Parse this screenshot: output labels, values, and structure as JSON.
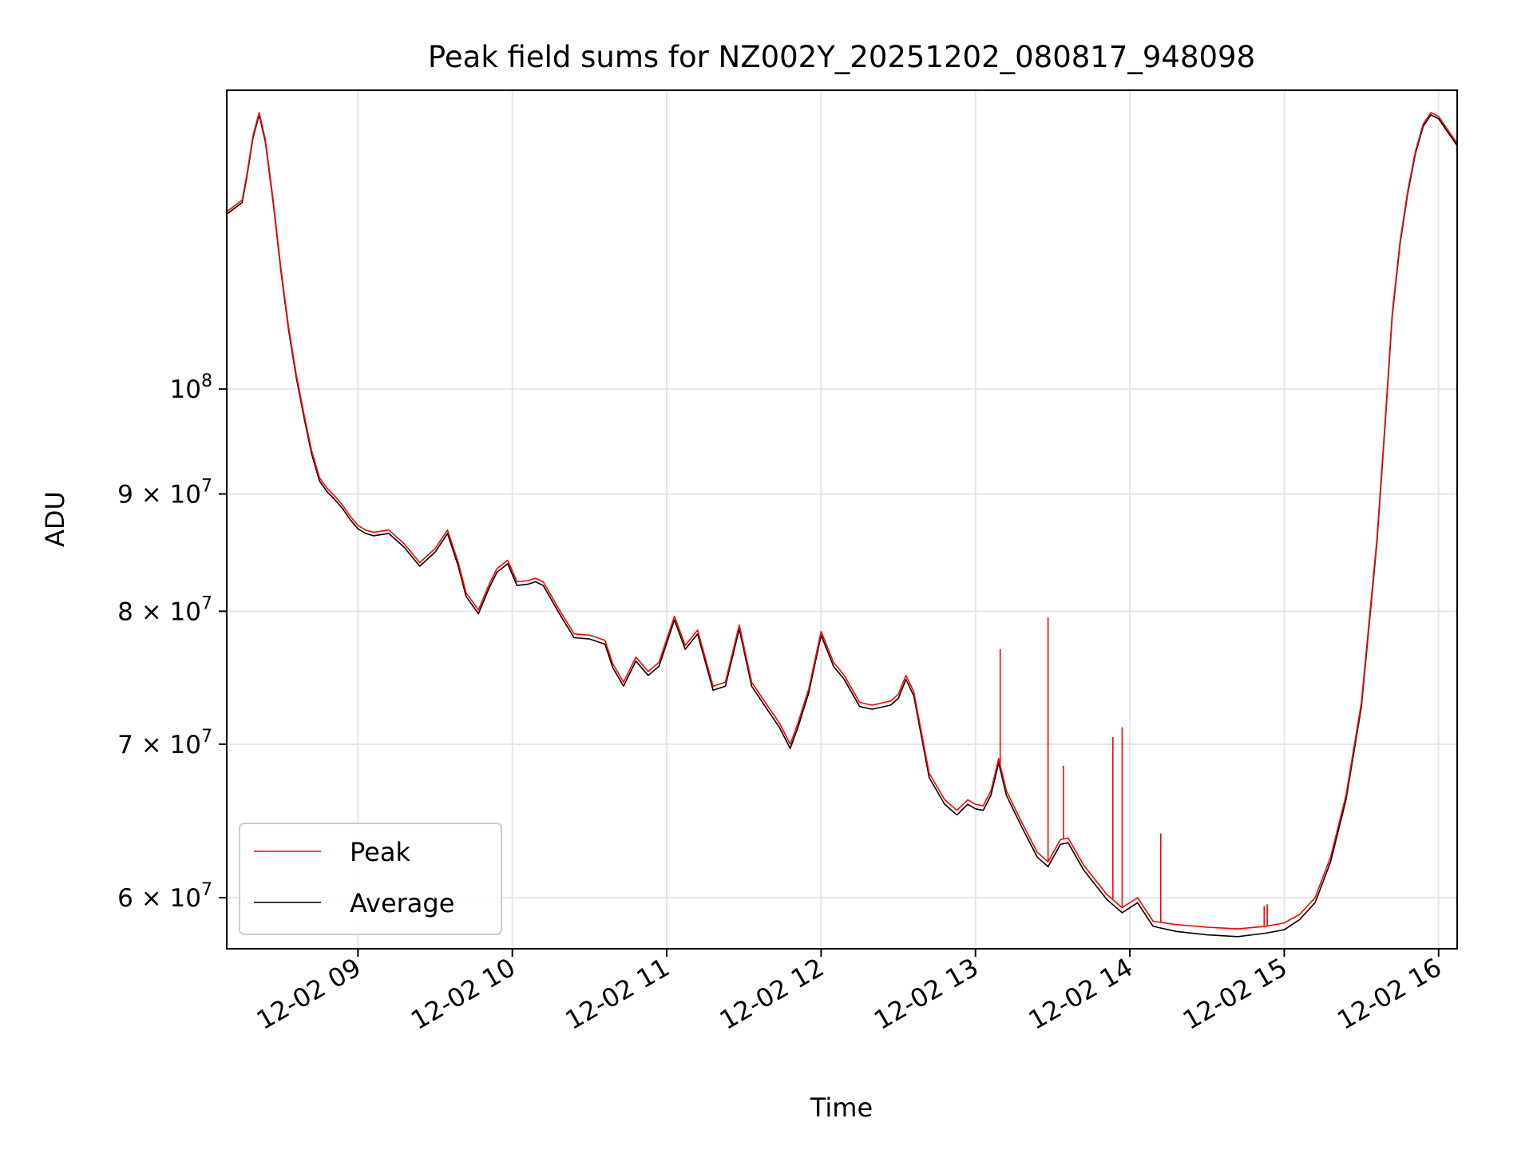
{
  "chart_data": {
    "type": "line",
    "title": "Peak field sums for NZ002Y_20251202_080817_948098",
    "xlabel": "Time",
    "ylabel": "ADU",
    "yscale": "log",
    "xlim": [
      8.15,
      16.12
    ],
    "ylim": [
      57000000,
      135000000
    ],
    "grid": true,
    "legend_position": "lower-left",
    "x_ticks": [
      {
        "value": 9,
        "label": "12-02 09"
      },
      {
        "value": 10,
        "label": "12-02 10"
      },
      {
        "value": 11,
        "label": "12-02 11"
      },
      {
        "value": 12,
        "label": "12-02 12"
      },
      {
        "value": 13,
        "label": "12-02 13"
      },
      {
        "value": 14,
        "label": "12-02 14"
      },
      {
        "value": 15,
        "label": "12-02 15"
      },
      {
        "value": 16,
        "label": "12-02 16"
      }
    ],
    "y_ticks": [
      {
        "value": 60000000,
        "base": "6 × 10",
        "exp": "7"
      },
      {
        "value": 70000000,
        "base": "7 × 10",
        "exp": "7"
      },
      {
        "value": 80000000,
        "base": "8 × 10",
        "exp": "7"
      },
      {
        "value": 90000000,
        "base": "9 × 10",
        "exp": "7"
      },
      {
        "value": 100000000,
        "base": "10",
        "exp": "8"
      }
    ],
    "series": [
      {
        "name": "Peak",
        "color": "#ff0000",
        "x": [
          8.15,
          8.2,
          8.25,
          8.28,
          8.32,
          8.36,
          8.4,
          8.45,
          8.5,
          8.55,
          8.6,
          8.65,
          8.7,
          8.72,
          8.75,
          8.8,
          8.85,
          8.9,
          8.95,
          9.0,
          9.05,
          9.1,
          9.2,
          9.3,
          9.4,
          9.5,
          9.58,
          9.65,
          9.7,
          9.78,
          9.85,
          9.9,
          9.97,
          10.03,
          10.1,
          10.15,
          10.2,
          10.3,
          10.4,
          10.5,
          10.6,
          10.65,
          10.72,
          10.8,
          10.88,
          10.95,
          11.05,
          11.12,
          11.2,
          11.3,
          11.38,
          11.47,
          11.55,
          11.65,
          11.73,
          11.8,
          11.85,
          11.92,
          12.0,
          12.08,
          12.15,
          12.25,
          12.33,
          12.45,
          12.5,
          12.55,
          12.6,
          12.7,
          12.8,
          12.88,
          12.95,
          13.0,
          13.05,
          13.1,
          13.15,
          13.2,
          13.3,
          13.4,
          13.47,
          13.55,
          13.6,
          13.7,
          13.8,
          13.85,
          13.9,
          13.95,
          14.05,
          14.15,
          14.3,
          14.5,
          14.7,
          14.88,
          15.0,
          15.1,
          15.2,
          15.3,
          15.4,
          15.5,
          15.6,
          15.65,
          15.7,
          15.75,
          15.8,
          15.85,
          15.9,
          15.95,
          16.0,
          16.05,
          16.12
        ],
        "y": [
          119500000,
          120200000,
          120900000,
          124000000,
          129000000,
          132000000,
          128500000,
          121000000,
          113000000,
          106500000,
          101500000,
          97500000,
          94000000,
          93000000,
          91500000,
          90500000,
          89800000,
          89000000,
          88000000,
          87200000,
          86800000,
          86600000,
          86800000,
          85600000,
          84000000,
          85200000,
          86800000,
          84000000,
          81500000,
          80100000,
          82200000,
          83500000,
          84200000,
          82400000,
          82500000,
          82700000,
          82400000,
          80200000,
          78200000,
          78100000,
          77700000,
          75900000,
          74500000,
          76400000,
          75300000,
          76000000,
          79600000,
          77300000,
          78500000,
          74200000,
          74500000,
          78900000,
          74500000,
          72800000,
          71500000,
          70000000,
          71500000,
          74000000,
          78400000,
          76000000,
          75000000,
          73000000,
          72800000,
          73100000,
          73600000,
          75000000,
          73800000,
          68000000,
          66200000,
          65500000,
          66200000,
          65900000,
          65800000,
          66800000,
          69000000,
          66800000,
          64700000,
          62800000,
          62200000,
          63600000,
          63700000,
          62000000,
          60800000,
          60200000,
          59800000,
          59400000,
          60000000,
          58600000,
          58400000,
          58250000,
          58150000,
          58300000,
          58500000,
          59000000,
          60000000,
          62500000,
          66500000,
          73000000,
          86000000,
          96000000,
          108000000,
          116000000,
          122000000,
          127000000,
          130500000,
          132000000,
          131500000,
          130000000,
          128000000
        ]
      },
      {
        "name": "Average",
        "color": "#000000",
        "x": [
          8.15,
          8.2,
          8.25,
          8.28,
          8.32,
          8.36,
          8.4,
          8.45,
          8.5,
          8.55,
          8.6,
          8.65,
          8.7,
          8.72,
          8.75,
          8.8,
          8.85,
          8.9,
          8.95,
          9.0,
          9.05,
          9.1,
          9.2,
          9.3,
          9.4,
          9.5,
          9.58,
          9.65,
          9.7,
          9.78,
          9.85,
          9.9,
          9.97,
          10.03,
          10.1,
          10.15,
          10.2,
          10.3,
          10.4,
          10.5,
          10.6,
          10.65,
          10.72,
          10.8,
          10.88,
          10.95,
          11.05,
          11.12,
          11.2,
          11.3,
          11.38,
          11.47,
          11.55,
          11.65,
          11.73,
          11.8,
          11.85,
          11.92,
          12.0,
          12.08,
          12.15,
          12.25,
          12.33,
          12.45,
          12.5,
          12.55,
          12.6,
          12.7,
          12.8,
          12.88,
          12.95,
          13.0,
          13.05,
          13.1,
          13.15,
          13.2,
          13.3,
          13.4,
          13.47,
          13.55,
          13.6,
          13.7,
          13.8,
          13.85,
          13.9,
          13.95,
          14.05,
          14.15,
          14.3,
          14.5,
          14.7,
          14.88,
          15.0,
          15.1,
          15.2,
          15.3,
          15.4,
          15.5,
          15.6,
          15.65,
          15.7,
          15.75,
          15.8,
          15.85,
          15.9,
          15.95,
          16.0,
          16.05,
          16.12
        ],
        "y": [
          119200000,
          119900000,
          120600000,
          123700000,
          128700000,
          131700000,
          128200000,
          120700000,
          112700000,
          106200000,
          101200000,
          97200000,
          93700000,
          92700000,
          91200000,
          90200000,
          89500000,
          88700000,
          87700000,
          86900000,
          86500000,
          86300000,
          86500000,
          85300000,
          83700000,
          84900000,
          86500000,
          83700000,
          81200000,
          79800000,
          81900000,
          83200000,
          83900000,
          82100000,
          82200000,
          82400000,
          82100000,
          79900000,
          77900000,
          77800000,
          77400000,
          75600000,
          74200000,
          76100000,
          75000000,
          75700000,
          79300000,
          77000000,
          78200000,
          73900000,
          74200000,
          78600000,
          74200000,
          72500000,
          71200000,
          69700000,
          71200000,
          73700000,
          78100000,
          75700000,
          74700000,
          72700000,
          72500000,
          72800000,
          73300000,
          74700000,
          73500000,
          67700000,
          65900000,
          65200000,
          65900000,
          65600000,
          65500000,
          66500000,
          68700000,
          66500000,
          64400000,
          62500000,
          61900000,
          63300000,
          63400000,
          61700000,
          60500000,
          59900000,
          59500000,
          59100000,
          59700000,
          58300000,
          58000000,
          57800000,
          57700000,
          57900000,
          58100000,
          58700000,
          59700000,
          62200000,
          66200000,
          72700000,
          85700000,
          95700000,
          107700000,
          115700000,
          121700000,
          126700000,
          130200000,
          131700000,
          131200000,
          129700000,
          127700000
        ]
      }
    ],
    "spikes": [
      {
        "x": 13.16,
        "y": 77000000
      },
      {
        "x": 13.47,
        "y": 79500000
      },
      {
        "x": 13.57,
        "y": 68500000
      },
      {
        "x": 13.89,
        "y": 70500000
      },
      {
        "x": 13.95,
        "y": 71200000
      },
      {
        "x": 14.2,
        "y": 64000000
      },
      {
        "x": 14.87,
        "y": 59500000
      },
      {
        "x": 14.89,
        "y": 59600000
      }
    ]
  }
}
